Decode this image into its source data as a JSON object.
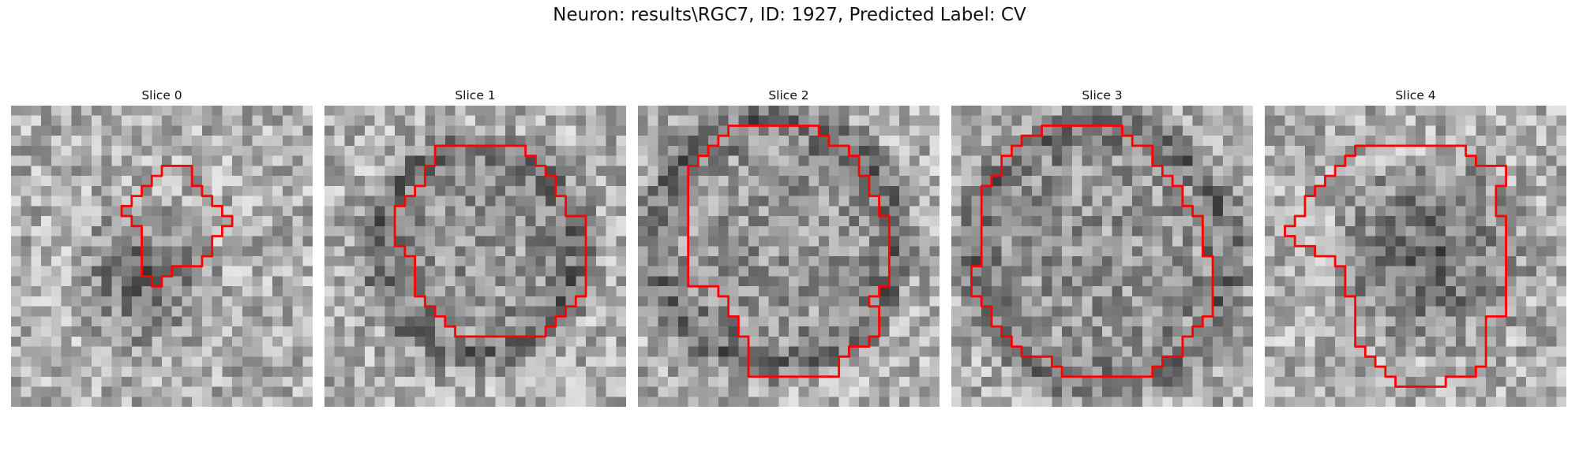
{
  "title": "Neuron: results\\RGC7, ID: 1927, Predicted Label: CV",
  "outline_color": "#ff0000",
  "grid_size": 30,
  "slices": [
    {
      "label": "Slice 0",
      "dark_center": [
        0.45,
        0.58
      ],
      "dark_radius": 0.25,
      "ring": false,
      "seed": 11,
      "roi": [
        [
          15,
          6
        ],
        [
          18,
          6
        ],
        [
          18,
          8
        ],
        [
          19,
          8
        ],
        [
          19,
          9
        ],
        [
          20,
          9
        ],
        [
          20,
          10
        ],
        [
          21,
          10
        ],
        [
          21,
          11
        ],
        [
          22,
          11
        ],
        [
          22,
          12
        ],
        [
          21,
          12
        ],
        [
          21,
          13
        ],
        [
          20,
          13
        ],
        [
          20,
          14
        ],
        [
          20,
          15
        ],
        [
          19,
          15
        ],
        [
          19,
          16
        ],
        [
          16,
          16
        ],
        [
          16,
          17
        ],
        [
          15,
          17
        ],
        [
          15,
          18
        ],
        [
          14,
          18
        ],
        [
          14,
          17
        ],
        [
          13,
          17
        ],
        [
          13,
          16
        ],
        [
          13,
          12
        ],
        [
          12,
          12
        ],
        [
          12,
          11
        ],
        [
          11,
          11
        ],
        [
          11,
          10
        ],
        [
          12,
          10
        ],
        [
          12,
          9
        ],
        [
          13,
          9
        ],
        [
          13,
          8
        ],
        [
          14,
          8
        ],
        [
          14,
          7
        ],
        [
          15,
          7
        ]
      ]
    },
    {
      "label": "Slice 1",
      "dark_center": [
        0.5,
        0.48
      ],
      "dark_radius": 0.33,
      "ring": true,
      "seed": 23,
      "roi": [
        [
          11,
          4
        ],
        [
          20,
          4
        ],
        [
          20,
          5
        ],
        [
          21,
          5
        ],
        [
          21,
          6
        ],
        [
          22,
          6
        ],
        [
          22,
          7
        ],
        [
          23,
          7
        ],
        [
          23,
          9
        ],
        [
          24,
          9
        ],
        [
          24,
          11
        ],
        [
          26,
          11
        ],
        [
          26,
          19
        ],
        [
          25,
          19
        ],
        [
          25,
          20
        ],
        [
          24,
          20
        ],
        [
          24,
          21
        ],
        [
          23,
          21
        ],
        [
          23,
          22
        ],
        [
          22,
          22
        ],
        [
          22,
          23
        ],
        [
          13,
          23
        ],
        [
          13,
          22
        ],
        [
          12,
          22
        ],
        [
          12,
          21
        ],
        [
          11,
          21
        ],
        [
          11,
          20
        ],
        [
          10,
          20
        ],
        [
          10,
          19
        ],
        [
          9,
          19
        ],
        [
          9,
          15
        ],
        [
          8,
          15
        ],
        [
          8,
          14
        ],
        [
          7,
          14
        ],
        [
          7,
          10
        ],
        [
          8,
          10
        ],
        [
          8,
          9
        ],
        [
          9,
          9
        ],
        [
          9,
          8
        ],
        [
          10,
          8
        ],
        [
          10,
          6
        ],
        [
          11,
          6
        ]
      ]
    },
    {
      "label": "Slice 2",
      "dark_center": [
        0.45,
        0.45
      ],
      "dark_radius": 0.4,
      "ring": true,
      "seed": 37,
      "roi": [
        [
          9,
          2
        ],
        [
          18,
          2
        ],
        [
          18,
          3
        ],
        [
          19,
          3
        ],
        [
          19,
          4
        ],
        [
          21,
          4
        ],
        [
          21,
          5
        ],
        [
          22,
          5
        ],
        [
          22,
          7
        ],
        [
          23,
          7
        ],
        [
          23,
          9
        ],
        [
          24,
          9
        ],
        [
          24,
          11
        ],
        [
          25,
          11
        ],
        [
          25,
          18
        ],
        [
          24,
          18
        ],
        [
          24,
          19
        ],
        [
          23,
          19
        ],
        [
          23,
          20
        ],
        [
          24,
          20
        ],
        [
          24,
          23
        ],
        [
          23,
          23
        ],
        [
          23,
          24
        ],
        [
          21,
          24
        ],
        [
          21,
          25
        ],
        [
          20,
          25
        ],
        [
          20,
          27
        ],
        [
          11,
          27
        ],
        [
          11,
          26
        ],
        [
          11,
          23
        ],
        [
          10,
          23
        ],
        [
          10,
          21
        ],
        [
          9,
          21
        ],
        [
          9,
          19
        ],
        [
          8,
          19
        ],
        [
          8,
          18
        ],
        [
          5,
          18
        ],
        [
          5,
          6
        ],
        [
          6,
          6
        ],
        [
          6,
          5
        ],
        [
          7,
          5
        ],
        [
          7,
          4
        ],
        [
          8,
          4
        ],
        [
          8,
          3
        ],
        [
          9,
          3
        ]
      ]
    },
    {
      "label": "Slice 3",
      "dark_center": [
        0.5,
        0.5
      ],
      "dark_radius": 0.42,
      "ring": true,
      "seed": 53,
      "roi": [
        [
          9,
          2
        ],
        [
          17,
          2
        ],
        [
          17,
          3
        ],
        [
          18,
          3
        ],
        [
          18,
          4
        ],
        [
          20,
          4
        ],
        [
          20,
          6
        ],
        [
          21,
          6
        ],
        [
          21,
          7
        ],
        [
          22,
          7
        ],
        [
          22,
          8
        ],
        [
          23,
          8
        ],
        [
          23,
          10
        ],
        [
          24,
          10
        ],
        [
          24,
          11
        ],
        [
          25,
          11
        ],
        [
          25,
          15
        ],
        [
          26,
          15
        ],
        [
          26,
          21
        ],
        [
          25,
          21
        ],
        [
          25,
          22
        ],
        [
          24,
          22
        ],
        [
          24,
          23
        ],
        [
          23,
          23
        ],
        [
          23,
          25
        ],
        [
          21,
          25
        ],
        [
          21,
          26
        ],
        [
          20,
          26
        ],
        [
          20,
          27
        ],
        [
          11,
          27
        ],
        [
          11,
          26
        ],
        [
          10,
          26
        ],
        [
          10,
          25
        ],
        [
          7,
          25
        ],
        [
          7,
          24
        ],
        [
          6,
          24
        ],
        [
          6,
          23
        ],
        [
          5,
          23
        ],
        [
          5,
          22
        ],
        [
          4,
          22
        ],
        [
          4,
          20
        ],
        [
          3,
          20
        ],
        [
          3,
          19
        ],
        [
          2,
          19
        ],
        [
          2,
          16
        ],
        [
          3,
          16
        ],
        [
          3,
          8
        ],
        [
          4,
          8
        ],
        [
          4,
          7
        ],
        [
          5,
          7
        ],
        [
          5,
          5
        ],
        [
          6,
          5
        ],
        [
          6,
          4
        ],
        [
          7,
          4
        ],
        [
          7,
          3
        ],
        [
          9,
          3
        ]
      ]
    },
    {
      "label": "Slice 4",
      "dark_center": [
        0.55,
        0.5
      ],
      "dark_radius": 0.35,
      "ring": false,
      "seed": 71,
      "roi": [
        [
          9,
          4
        ],
        [
          20,
          4
        ],
        [
          20,
          5
        ],
        [
          21,
          5
        ],
        [
          21,
          6
        ],
        [
          24,
          6
        ],
        [
          24,
          8
        ],
        [
          23,
          8
        ],
        [
          23,
          11
        ],
        [
          24,
          11
        ],
        [
          24,
          21
        ],
        [
          22,
          21
        ],
        [
          22,
          26
        ],
        [
          21,
          26
        ],
        [
          21,
          27
        ],
        [
          18,
          27
        ],
        [
          18,
          28
        ],
        [
          13,
          28
        ],
        [
          13,
          27
        ],
        [
          12,
          27
        ],
        [
          12,
          26
        ],
        [
          11,
          26
        ],
        [
          11,
          25
        ],
        [
          10,
          25
        ],
        [
          10,
          24
        ],
        [
          9,
          24
        ],
        [
          9,
          19
        ],
        [
          8,
          19
        ],
        [
          8,
          16
        ],
        [
          7,
          16
        ],
        [
          7,
          15
        ],
        [
          5,
          15
        ],
        [
          5,
          14
        ],
        [
          3,
          14
        ],
        [
          3,
          13
        ],
        [
          2,
          13
        ],
        [
          2,
          12
        ],
        [
          3,
          12
        ],
        [
          3,
          11
        ],
        [
          4,
          11
        ],
        [
          4,
          9
        ],
        [
          5,
          9
        ],
        [
          5,
          8
        ],
        [
          6,
          8
        ],
        [
          6,
          7
        ],
        [
          7,
          7
        ],
        [
          7,
          6
        ],
        [
          8,
          6
        ],
        [
          8,
          5
        ],
        [
          9,
          5
        ]
      ]
    }
  ]
}
